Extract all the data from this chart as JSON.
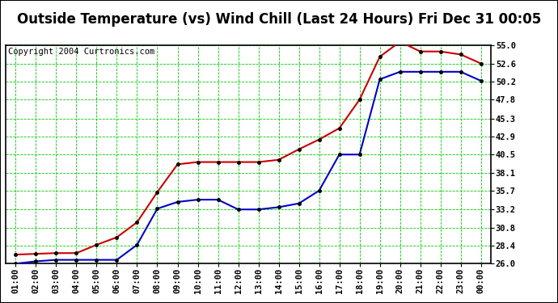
{
  "title": "Outside Temperature (vs) Wind Chill (Last 24 Hours) Fri Dec 31 00:05",
  "copyright": "Copyright 2004 Curtronics.com",
  "x_labels": [
    "01:00",
    "02:00",
    "03:00",
    "04:00",
    "05:00",
    "06:00",
    "07:00",
    "08:00",
    "09:00",
    "10:00",
    "11:00",
    "12:00",
    "13:00",
    "14:00",
    "15:00",
    "16:00",
    "17:00",
    "18:00",
    "19:00",
    "20:00",
    "21:00",
    "22:00",
    "23:00",
    "00:00"
  ],
  "outside_temp": [
    27.2,
    27.3,
    27.4,
    27.4,
    28.5,
    29.5,
    31.5,
    35.5,
    39.2,
    39.5,
    39.5,
    39.5,
    39.5,
    39.8,
    41.2,
    42.5,
    44.0,
    47.8,
    53.5,
    55.5,
    54.2,
    54.2,
    53.8,
    52.6
  ],
  "wind_chill": [
    26.0,
    26.3,
    26.5,
    26.5,
    26.5,
    26.5,
    28.5,
    33.3,
    34.2,
    34.5,
    34.5,
    33.2,
    33.2,
    33.5,
    34.0,
    35.7,
    40.5,
    40.5,
    50.5,
    51.5,
    51.5,
    51.5,
    51.5,
    50.3
  ],
  "outside_color": "#cc0000",
  "windchill_color": "#0000cc",
  "bg_color": "#ffffff",
  "grid_color": "#00cc00",
  "border_color": "#000000",
  "ylim": [
    26.0,
    55.0
  ],
  "yticks": [
    26.0,
    28.4,
    30.8,
    33.2,
    35.7,
    38.1,
    40.5,
    42.9,
    45.3,
    47.8,
    50.2,
    52.6,
    55.0
  ],
  "title_fontsize": 12,
  "copyright_fontsize": 7.5,
  "tick_fontsize": 7.5
}
